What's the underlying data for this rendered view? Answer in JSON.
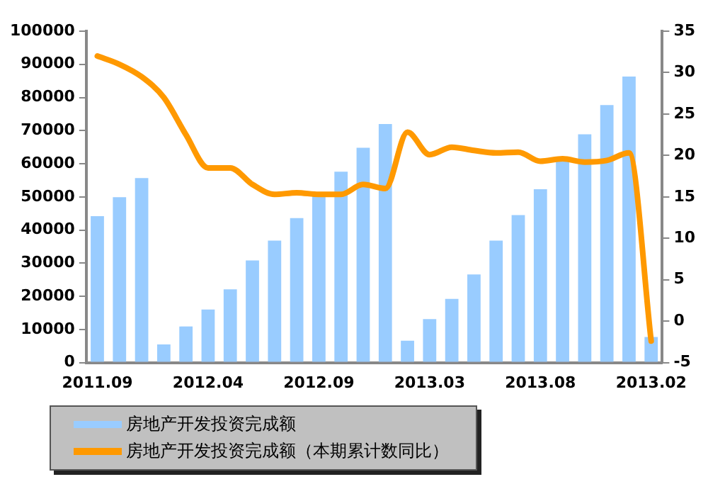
{
  "chart_data": {
    "type": "bar",
    "categories": [
      "2011.09",
      null,
      null,
      null,
      null,
      "2012.04",
      null,
      null,
      null,
      null,
      "2012.09",
      null,
      null,
      null,
      null,
      "2013.03",
      null,
      null,
      null,
      null,
      "2013.08",
      null,
      null,
      null,
      null,
      "2013.02"
    ],
    "series": [
      {
        "name": "房地产开发投资完成额",
        "color": "#99ccff",
        "values": [
          44200,
          49900,
          55700,
          5500,
          10900,
          16000,
          22100,
          30800,
          36800,
          43600,
          50600,
          57600,
          64800,
          72000,
          6600,
          13100,
          19200,
          26600,
          36800,
          44500,
          52300,
          61100,
          68900,
          77700,
          86300,
          7700
        ]
      },
      {
        "name": "房地产开发投资完成额（本期累计数同比）",
        "type": "line",
        "axis": "y2",
        "color": "#ff9900",
        "values": [
          32,
          31,
          29.5,
          27,
          22.5,
          18.5,
          18.5,
          16.5,
          15.3,
          15.5,
          15.3,
          15.3,
          16.5,
          16,
          22.8,
          20.1,
          21,
          20.6,
          20.3,
          20.4,
          19.3,
          19.6,
          19.2,
          19.4,
          20.3,
          -2.4
        ]
      }
    ],
    "ylim": [
      0,
      100000
    ],
    "yticks": [
      0,
      10000,
      20000,
      30000,
      40000,
      50000,
      60000,
      70000,
      80000,
      90000,
      100000
    ],
    "y2lim": [
      -5,
      35
    ],
    "y2ticks": [
      -5,
      0,
      5,
      10,
      15,
      20,
      25,
      30,
      35
    ],
    "grid": false,
    "legend": "bottom",
    "marker": "none",
    "line_style": "solid"
  }
}
